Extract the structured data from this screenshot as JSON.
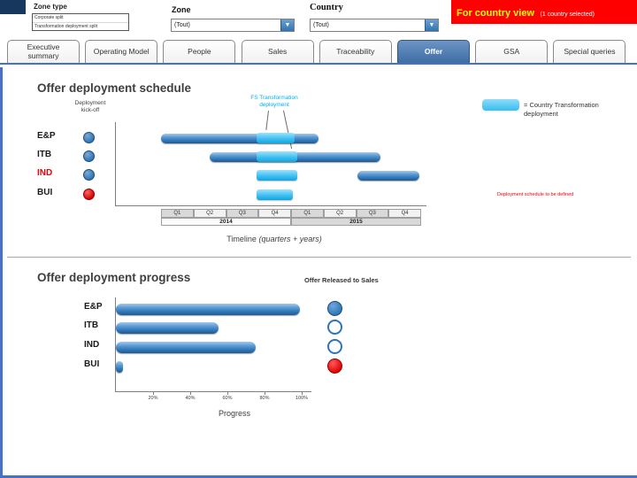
{
  "header": {
    "zone_type": {
      "label": "Zone type",
      "rows": [
        "Corporate split",
        "Transformation deployment split"
      ]
    },
    "zone": {
      "label": "Zone",
      "value": "(Tout)"
    },
    "country": {
      "label": "Country",
      "value": "(Tout)"
    },
    "banner": {
      "title": "For  country view",
      "subtitle": "(1 country selected)",
      "bg": "#fe0000"
    }
  },
  "tabs": [
    {
      "label": "Executive summary",
      "selected": false
    },
    {
      "label": "Operating Model",
      "selected": false
    },
    {
      "label": "People",
      "selected": false
    },
    {
      "label": "Sales",
      "selected": false
    },
    {
      "label": "Traceability",
      "selected": false
    },
    {
      "label": "Offer",
      "selected": true
    },
    {
      "label": "GSA",
      "selected": false
    },
    {
      "label": "Special queries",
      "selected": false
    }
  ],
  "colors": {
    "bar_blue": "#2e75b6",
    "bar_cyan": "#3fc1f3",
    "status_red": "#e8000d",
    "accent_border": "#4472c4",
    "tab_selected": "#3f6ea5"
  },
  "schedule": {
    "title": "Offer deployment schedule",
    "kickoff_line1": "Deployment",
    "kickoff_line2": "kick-off",
    "callout_line1": "FS Transformation",
    "callout_line2": "deployment",
    "legend_text": "= Country Transformation deployment",
    "note": "Deployment schedule to be defined",
    "axis_title": "Timeline",
    "axis_title_sub": "(quarters + years)",
    "quarters": [
      "Q1",
      "Q2",
      "Q3",
      "Q4",
      "Q1",
      "Q2",
      "Q3",
      "Q4"
    ],
    "years": [
      "2014",
      "2015"
    ],
    "rows": [
      {
        "label": "E&P",
        "label_color": "#1a1a1a",
        "dot": "blue",
        "bars": [
          {
            "type": "deployment",
            "start_q": 0,
            "end_q": 4.85
          },
          {
            "type": "transformation",
            "start_q": 2.95,
            "end_q": 4.1
          }
        ]
      },
      {
        "label": "ITB",
        "label_color": "#1a1a1a",
        "dot": "blue",
        "bars": [
          {
            "type": "deployment",
            "start_q": 1.5,
            "end_q": 6.75
          },
          {
            "type": "transformation",
            "start_q": 2.95,
            "end_q": 4.2
          }
        ]
      },
      {
        "label": "IND",
        "label_color": "#e8000d",
        "dot": "blue",
        "bars": [
          {
            "type": "transformation",
            "start_q": 2.95,
            "end_q": 4.2
          },
          {
            "type": "deployment",
            "start_q": 6.05,
            "end_q": 7.95
          }
        ]
      },
      {
        "label": "BUI",
        "label_color": "#1a1a1a",
        "dot": "red",
        "bars": [
          {
            "type": "transformation",
            "start_q": 2.95,
            "end_q": 4.05
          }
        ]
      }
    ]
  },
  "progress": {
    "title": "Offer deployment progress",
    "released_label": "Offer Released to Sales",
    "axis_title": "Progress",
    "ticks": [
      "20%",
      "40%",
      "60%",
      "80%",
      "100%"
    ],
    "tick_values": [
      20,
      40,
      60,
      80,
      100
    ],
    "rows": [
      {
        "label": "E&P",
        "value_pct": 99,
        "marker": "filled-blue"
      },
      {
        "label": "ITB",
        "value_pct": 55,
        "marker": "outline"
      },
      {
        "label": "IND",
        "value_pct": 75,
        "marker": "outline"
      },
      {
        "label": "BUI",
        "value_pct": 4,
        "marker": "filled-red"
      }
    ]
  },
  "chart_data": [
    {
      "type": "gantt",
      "title": "Offer deployment schedule",
      "x_categories": [
        "2014-Q1",
        "2014-Q2",
        "2014-Q3",
        "2014-Q4",
        "2015-Q1",
        "2015-Q2",
        "2015-Q3",
        "2015-Q4"
      ],
      "xlabel": "Timeline (quarters + years)",
      "rows": [
        {
          "name": "E&P",
          "deployment": [
            0,
            4.85
          ],
          "transformation": [
            2.95,
            4.1
          ]
        },
        {
          "name": "ITB",
          "deployment": [
            1.5,
            6.75
          ],
          "transformation": [
            2.95,
            4.2
          ]
        },
        {
          "name": "IND",
          "deployment": [
            6.05,
            7.95
          ],
          "transformation": [
            2.95,
            4.2
          ]
        },
        {
          "name": "BUI",
          "deployment": null,
          "transformation": [
            2.95,
            4.05
          ]
        }
      ]
    },
    {
      "type": "bar",
      "title": "Offer deployment progress",
      "categories": [
        "E&P",
        "ITB",
        "IND",
        "BUI"
      ],
      "values": [
        99,
        55,
        75,
        4
      ],
      "xlabel": "Progress",
      "xlim": [
        0,
        100
      ]
    }
  ]
}
